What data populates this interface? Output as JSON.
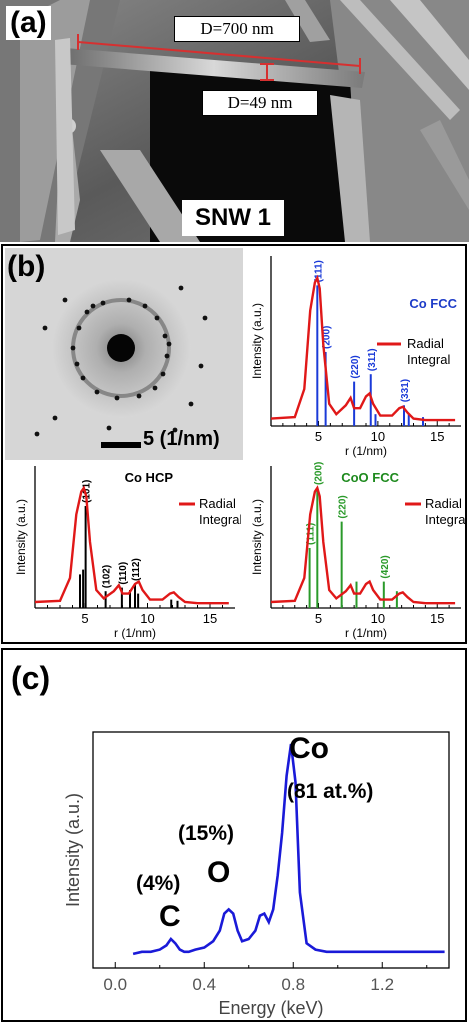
{
  "panel_a": {
    "label": "(a)",
    "measure_long": "D=700  nm",
    "measure_short": "D=49  nm",
    "sample_name": "SNW 1"
  },
  "panel_b": {
    "label": "(b)",
    "scale_bar_label": "5 (1/nm)",
    "charts": [
      {
        "type": "line",
        "title": "Co FCC",
        "title_color": "#1e3cc8",
        "xlabel": "r (1/nm)",
        "ylabel": "Intensity (a.u.)",
        "xlim": [
          1,
          17
        ],
        "xticks": [
          5,
          10,
          15
        ],
        "legend": [
          "Radial",
          "Integral"
        ],
        "peak_color": "#1a3ad8",
        "radial_curve": {
          "x": [
            1,
            3,
            3.8,
            4.3,
            4.7,
            4.9,
            5.1,
            5.4,
            5.9,
            6.5,
            7.3,
            7.7,
            8.0,
            8.5,
            9.0,
            9.3,
            9.6,
            10.2,
            11.2,
            11.8,
            12.1,
            12.5,
            13.0,
            14,
            16.5
          ],
          "y": [
            0.05,
            0.06,
            0.25,
            0.78,
            0.97,
            1.0,
            0.93,
            0.55,
            0.15,
            0.08,
            0.14,
            0.19,
            0.12,
            0.12,
            0.2,
            0.22,
            0.15,
            0.07,
            0.07,
            0.12,
            0.13,
            0.09,
            0.05,
            0.04,
            0.04
          ]
        },
        "peaks": [
          {
            "x": 4.9,
            "h": 0.95,
            "label": "(111)"
          },
          {
            "x": 5.6,
            "h": 0.5,
            "label": "(200)"
          },
          {
            "x": 8.0,
            "h": 0.3,
            "label": "(220)"
          },
          {
            "x": 9.4,
            "h": 0.35,
            "label": "(311)"
          },
          {
            "x": 9.8,
            "h": 0.08,
            "label": ""
          },
          {
            "x": 12.2,
            "h": 0.14,
            "label": "(331)"
          },
          {
            "x": 12.6,
            "h": 0.08,
            "label": ""
          },
          {
            "x": 13.8,
            "h": 0.06,
            "label": ""
          }
        ]
      },
      {
        "type": "line",
        "title": "Co HCP",
        "title_color": "#000000",
        "xlabel": "r (1/nm)",
        "ylabel": "Intensity (a.u.)",
        "xlim": [
          1,
          17
        ],
        "xticks": [
          5,
          10,
          15
        ],
        "legend": [
          "Radial",
          "Integral"
        ],
        "peak_color": "#000000",
        "radial_curve": {
          "x": [
            1,
            3,
            3.8,
            4.3,
            4.7,
            4.9,
            5.1,
            5.4,
            5.9,
            6.5,
            7.3,
            7.7,
            8.0,
            8.5,
            9.0,
            9.3,
            9.6,
            10.2,
            11.2,
            11.8,
            12.1,
            12.5,
            13.0,
            14,
            16.5
          ],
          "y": [
            0.05,
            0.06,
            0.25,
            0.78,
            0.97,
            1.0,
            0.93,
            0.55,
            0.15,
            0.08,
            0.14,
            0.19,
            0.12,
            0.12,
            0.2,
            0.22,
            0.15,
            0.07,
            0.07,
            0.12,
            0.13,
            0.09,
            0.05,
            0.04,
            0.04
          ]
        },
        "peaks": [
          {
            "x": 4.6,
            "h": 0.28,
            "label": ""
          },
          {
            "x": 4.85,
            "h": 0.32,
            "label": ""
          },
          {
            "x": 5.05,
            "h": 0.85,
            "label": "(101)"
          },
          {
            "x": 6.65,
            "h": 0.14,
            "label": "(102)"
          },
          {
            "x": 7.95,
            "h": 0.17,
            "label": "(110)"
          },
          {
            "x": 8.6,
            "h": 0.15,
            "label": ""
          },
          {
            "x": 9.0,
            "h": 0.2,
            "label": "(112)"
          },
          {
            "x": 9.25,
            "h": 0.12,
            "label": ""
          },
          {
            "x": 11.9,
            "h": 0.07,
            "label": ""
          },
          {
            "x": 12.4,
            "h": 0.06,
            "label": ""
          }
        ]
      },
      {
        "type": "line",
        "title": "CoO FCC",
        "title_color": "#1e8a1e",
        "xlabel": "r (1/nm)",
        "ylabel": "Intensity (a.u.)",
        "xlim": [
          1,
          17
        ],
        "xticks": [
          5,
          10,
          15
        ],
        "legend": [
          "Radial",
          "Integral"
        ],
        "peak_color": "#2a9a2a",
        "radial_curve": {
          "x": [
            1,
            3,
            3.8,
            4.3,
            4.7,
            4.9,
            5.1,
            5.4,
            5.9,
            6.5,
            7.3,
            7.7,
            8.0,
            8.5,
            9.0,
            9.3,
            9.6,
            10.2,
            11.2,
            11.8,
            12.1,
            12.5,
            13.0,
            14,
            16.5
          ],
          "y": [
            0.05,
            0.06,
            0.25,
            0.78,
            0.97,
            1.0,
            0.93,
            0.55,
            0.15,
            0.08,
            0.14,
            0.19,
            0.12,
            0.12,
            0.2,
            0.22,
            0.15,
            0.07,
            0.07,
            0.12,
            0.13,
            0.09,
            0.05,
            0.04,
            0.04
          ]
        },
        "peaks": [
          {
            "x": 4.25,
            "h": 0.5,
            "label": "(111)"
          },
          {
            "x": 4.9,
            "h": 1.0,
            "label": "(200)"
          },
          {
            "x": 6.95,
            "h": 0.72,
            "label": "(220)"
          },
          {
            "x": 8.2,
            "h": 0.22,
            "label": ""
          },
          {
            "x": 10.5,
            "h": 0.22,
            "label": "(420)"
          },
          {
            "x": 11.6,
            "h": 0.14,
            "label": ""
          }
        ]
      }
    ]
  },
  "panel_c": {
    "label": "(c)",
    "chart_data": {
      "type": "line",
      "xlabel": "Energy (keV)",
      "ylabel": "Intensity (a.u.)",
      "xlim": [
        -0.1,
        1.5
      ],
      "xticks": [
        "0.0",
        "0.4",
        "0.8",
        "1.2"
      ],
      "color": "#1a1ad8",
      "x": [
        0.08,
        0.12,
        0.16,
        0.2,
        0.23,
        0.25,
        0.27,
        0.29,
        0.31,
        0.33,
        0.36,
        0.4,
        0.44,
        0.47,
        0.49,
        0.51,
        0.53,
        0.55,
        0.57,
        0.6,
        0.63,
        0.65,
        0.67,
        0.69,
        0.71,
        0.73,
        0.75,
        0.77,
        0.79,
        0.81,
        0.83,
        0.86,
        0.9,
        0.95,
        1.0,
        1.1,
        1.2,
        1.3,
        1.4,
        1.48
      ],
      "y": [
        0.01,
        0.02,
        0.02,
        0.03,
        0.05,
        0.08,
        0.06,
        0.03,
        0.02,
        0.02,
        0.03,
        0.04,
        0.07,
        0.12,
        0.2,
        0.22,
        0.2,
        0.12,
        0.07,
        0.08,
        0.12,
        0.19,
        0.2,
        0.16,
        0.22,
        0.38,
        0.58,
        0.85,
        1.0,
        0.82,
        0.3,
        0.06,
        0.03,
        0.02,
        0.02,
        0.02,
        0.02,
        0.02,
        0.02,
        0.02
      ],
      "annotations": [
        {
          "element": "Co",
          "amount": "(81 at.%)"
        },
        {
          "element": "O",
          "amount": "(15%)"
        },
        {
          "element": "C",
          "amount": "(4%)"
        }
      ]
    }
  }
}
